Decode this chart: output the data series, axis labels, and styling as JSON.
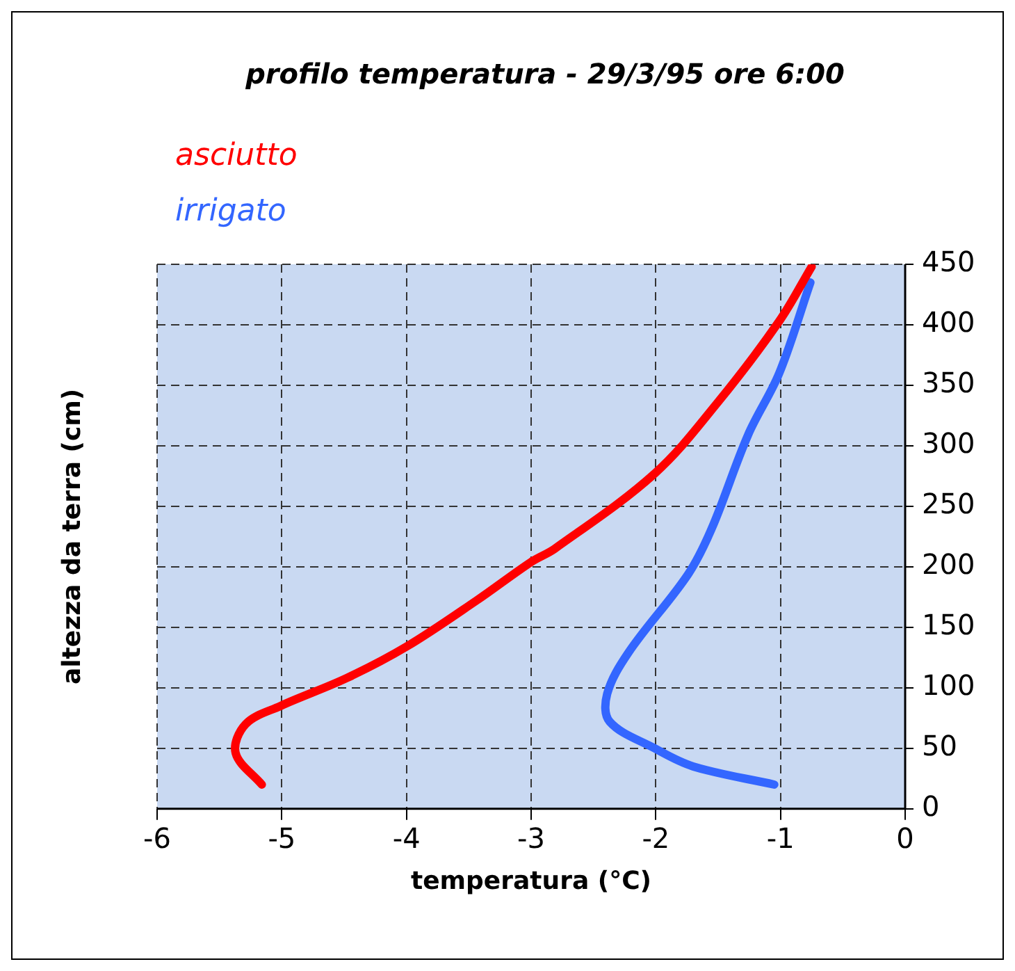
{
  "chart_data": {
    "type": "line",
    "title": "profilo temperatura - 29/3/95 ore 6:00",
    "xlabel": "temperatura (°C)",
    "ylabel": "altezza da terra (cm)",
    "xlim": [
      -6,
      0
    ],
    "xticks": [
      -6,
      -5,
      -4,
      -3,
      -2,
      -1,
      0
    ],
    "ylim": [
      0,
      450
    ],
    "yticks": [
      0,
      50,
      100,
      150,
      200,
      250,
      300,
      350,
      400,
      450
    ],
    "grid": true,
    "legend": "top left",
    "line_style": "solid",
    "marker": "none",
    "series": [
      {
        "name": "asciutto",
        "color": "#ff0000",
        "x": [
          -5.16,
          -5.37,
          -5.29,
          -5.01,
          -4.48,
          -4.0,
          -3.44,
          -3.0,
          -2.81,
          -2.01,
          -1.51,
          -1.01,
          -0.75
        ],
        "values": [
          20,
          46,
          70,
          85,
          108,
          134,
          172,
          204,
          215,
          277,
          335,
          403,
          448
        ]
      },
      {
        "name": "irrigato",
        "color": "#3366ff",
        "x": [
          -1.05,
          -1.7,
          -2.01,
          -2.37,
          -2.39,
          -2.22,
          -1.74,
          -1.55,
          -1.26,
          -1.01,
          -0.76
        ],
        "values": [
          20,
          35,
          50,
          72,
          95,
          129,
          194,
          232,
          309,
          360,
          435
        ]
      }
    ]
  }
}
